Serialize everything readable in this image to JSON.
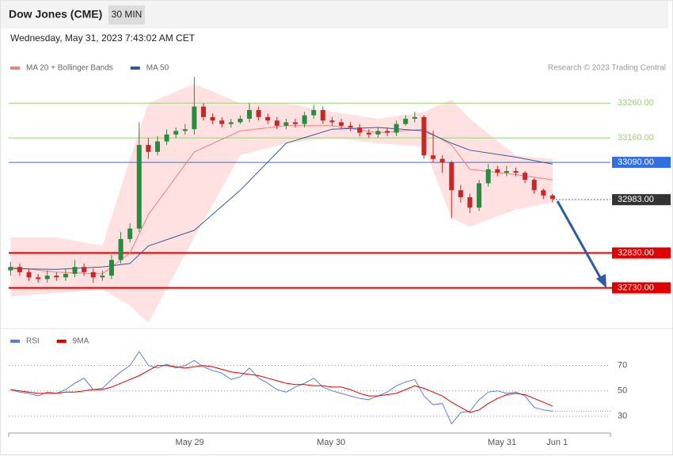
{
  "header": {
    "title": "Dow Jones (CME)",
    "interval": "30 MIN",
    "timestamp": "Wednesday, May 31, 2023 7:43:02 AM CET"
  },
  "credit": "Research © 2023 Trading Central",
  "chart_data": [
    {
      "type": "candlestick",
      "x": [
        0,
        1,
        2,
        3,
        4,
        5,
        6,
        7,
        8,
        9,
        10,
        11,
        12,
        13,
        14,
        15,
        16,
        17,
        18,
        19,
        20,
        21,
        22,
        23,
        24,
        25,
        26,
        27,
        28,
        29,
        30,
        31,
        32,
        33,
        34,
        35,
        36,
        37,
        38,
        39,
        40,
        41,
        42,
        43,
        44,
        45,
        46,
        47,
        48,
        49,
        50,
        51,
        52,
        53,
        54,
        55,
        56,
        57,
        58,
        59
      ],
      "open": [
        32780,
        32790,
        32775,
        32760,
        32755,
        32765,
        32760,
        32770,
        32790,
        32775,
        32760,
        32765,
        32810,
        32870,
        32900,
        33140,
        33120,
        33150,
        33170,
        33180,
        33185,
        33250,
        33220,
        33210,
        33200,
        33205,
        33215,
        33240,
        33220,
        33210,
        33195,
        33205,
        33200,
        33225,
        33240,
        33210,
        33205,
        33195,
        33190,
        33175,
        33170,
        33180,
        33175,
        33200,
        33215,
        33220,
        33110,
        33100,
        33090,
        33010,
        32990,
        32960,
        33030,
        33070,
        33060,
        33065,
        33060,
        33040,
        33010,
        32995
      ],
      "high": [
        32805,
        32800,
        32785,
        32770,
        32780,
        32775,
        32785,
        32810,
        32800,
        32785,
        32780,
        32825,
        32890,
        32915,
        33205,
        33160,
        33165,
        33185,
        33190,
        33200,
        33335,
        33260,
        33230,
        33220,
        33215,
        33225,
        33260,
        33250,
        33230,
        33220,
        33215,
        33215,
        33235,
        33255,
        33250,
        33220,
        33215,
        33205,
        33200,
        33185,
        33190,
        33190,
        33210,
        33225,
        33235,
        33225,
        33180,
        33110,
        33095,
        33025,
        33000,
        33040,
        33085,
        33080,
        33080,
        33075,
        33065,
        33045,
        33015,
        33000
      ],
      "low": [
        32765,
        32765,
        32750,
        32745,
        32745,
        32750,
        32750,
        32760,
        32765,
        32745,
        32750,
        32755,
        32800,
        32860,
        32890,
        33100,
        33110,
        33140,
        33160,
        33170,
        33170,
        33210,
        33200,
        33190,
        33190,
        33200,
        33205,
        33210,
        33200,
        33185,
        33185,
        33190,
        33190,
        33215,
        33200,
        33195,
        33185,
        33180,
        33165,
        33160,
        33160,
        33165,
        33165,
        33195,
        33205,
        33100,
        33090,
        33060,
        32930,
        32975,
        32945,
        32950,
        33020,
        33050,
        33050,
        33050,
        33030,
        33000,
        32985,
        32975
      ],
      "close": [
        32790,
        32775,
        32760,
        32755,
        32765,
        32760,
        32770,
        32790,
        32775,
        32760,
        32765,
        32810,
        32870,
        32900,
        33140,
        33120,
        33150,
        33170,
        33180,
        33185,
        33250,
        33220,
        33210,
        33200,
        33205,
        33215,
        33240,
        33220,
        33210,
        33195,
        33205,
        33200,
        33225,
        33240,
        33210,
        33205,
        33195,
        33190,
        33175,
        33170,
        33180,
        33175,
        33200,
        33215,
        33220,
        33110,
        33100,
        33090,
        33010,
        32990,
        32960,
        33030,
        33070,
        33060,
        33065,
        33060,
        33040,
        33010,
        32995,
        32985
      ],
      "up_color": "#2b8a3e",
      "down_color": "#c62828",
      "xlim": [
        -0.2,
        65.3
      ],
      "ylim": [
        32620,
        33340
      ],
      "overlays": {
        "x": [
          0,
          5,
          10,
          13,
          15,
          20,
          25,
          30,
          35,
          40,
          45,
          48,
          50,
          55,
          59
        ],
        "series": [
          {
            "name": "MA 20 + Bollinger Bands",
            "color": "#f08080",
            "band_color": "#ffd9d9",
            "values": [
              32790,
              32775,
              32770,
              32830,
              32940,
              33120,
              33180,
              33195,
              33195,
              33175,
              33185,
              33140,
              33070,
              33055,
              33040
            ],
            "upper": [
              32875,
              32875,
              32850,
              33100,
              33260,
              33315,
              33260,
              33260,
              33235,
              33215,
              33235,
              33270,
              33215,
              33110,
              33100
            ],
            "lower": [
              32705,
              32715,
              32725,
              32680,
              32630,
              32875,
              33110,
              33145,
              33160,
              33145,
              33135,
              32930,
              32905,
              32955,
              32975
            ]
          },
          {
            "name": "MA 50",
            "color": "#2f5a9e",
            "values": [
              32785,
              32783,
              32790,
              32800,
              32850,
              32895,
              33010,
              33145,
              33185,
              33190,
              33180,
              33145,
              33125,
              33105,
              33085
            ]
          }
        ]
      },
      "levels": [
        {
          "value": 33260,
          "label": "33260.00",
          "color": "#9bcf7a",
          "line": "thin",
          "boxed": false
        },
        {
          "value": 33160,
          "label": "33160.00",
          "color": "#9bcf7a",
          "line": "thin",
          "boxed": false
        },
        {
          "value": 33090,
          "label": "33090.00",
          "color": "#2f6fe0",
          "line": "thin",
          "boxed": true
        },
        {
          "value": 32983,
          "label": "32983.00",
          "color": "#333333",
          "line": "dotted",
          "boxed": true
        },
        {
          "value": 32830,
          "label": "32830.00",
          "color": "#e00000",
          "line": "thick",
          "boxed": true
        },
        {
          "value": 32730,
          "label": "32730.00",
          "color": "#e00000",
          "line": "thick",
          "boxed": true
        }
      ]
    },
    {
      "type": "line",
      "x": [
        0,
        1,
        2,
        3,
        4,
        5,
        6,
        7,
        8,
        9,
        10,
        11,
        12,
        13,
        14,
        15,
        16,
        17,
        18,
        19,
        20,
        21,
        22,
        23,
        24,
        25,
        26,
        27,
        28,
        29,
        30,
        31,
        32,
        33,
        34,
        35,
        36,
        37,
        38,
        39,
        40,
        41,
        42,
        43,
        44,
        45,
        46,
        47,
        48,
        49,
        50,
        51,
        52,
        53,
        54,
        55,
        56,
        57,
        58,
        59
      ],
      "series": [
        {
          "name": "RSI",
          "color": "#5b7fd6",
          "values": [
            51,
            49,
            48,
            46,
            49,
            48,
            51,
            56,
            60,
            51,
            52,
            59,
            65,
            70,
            81,
            70,
            68,
            71,
            68,
            70,
            74,
            69,
            66,
            64,
            59,
            61,
            68,
            60,
            56,
            51,
            49,
            53,
            56,
            60,
            53,
            50,
            48,
            46,
            44,
            43,
            46,
            49,
            54,
            57,
            59,
            46,
            39,
            40,
            24,
            33,
            34,
            43,
            49,
            50,
            48,
            49,
            46,
            37,
            35,
            34
          ]
        },
        {
          "name": "9MA",
          "color": "#e00000",
          "values": [
            51,
            50,
            49,
            48,
            48,
            48,
            49,
            49,
            50,
            51,
            51,
            53,
            56,
            59,
            62,
            66,
            70,
            70,
            69,
            68,
            69,
            70,
            69,
            67,
            65,
            64,
            63,
            62,
            60,
            58,
            56,
            55,
            55,
            54,
            54,
            53,
            53,
            51,
            48,
            46,
            46,
            47,
            48,
            51,
            54,
            52,
            49,
            46,
            41,
            37,
            33,
            35,
            40,
            44,
            47,
            48,
            47,
            44,
            41,
            38
          ]
        }
      ],
      "xlim": [
        -0.2,
        65.3
      ],
      "ylim": [
        18,
        96
      ],
      "yticks": [
        30,
        50,
        70
      ],
      "xticks": [
        {
          "value": 19.5,
          "label": "May 29"
        },
        {
          "value": 34.9,
          "label": "May 30"
        },
        {
          "value": 53.5,
          "label": "May 31"
        },
        {
          "value": 59.5,
          "label": "Jun 1"
        }
      ]
    }
  ]
}
